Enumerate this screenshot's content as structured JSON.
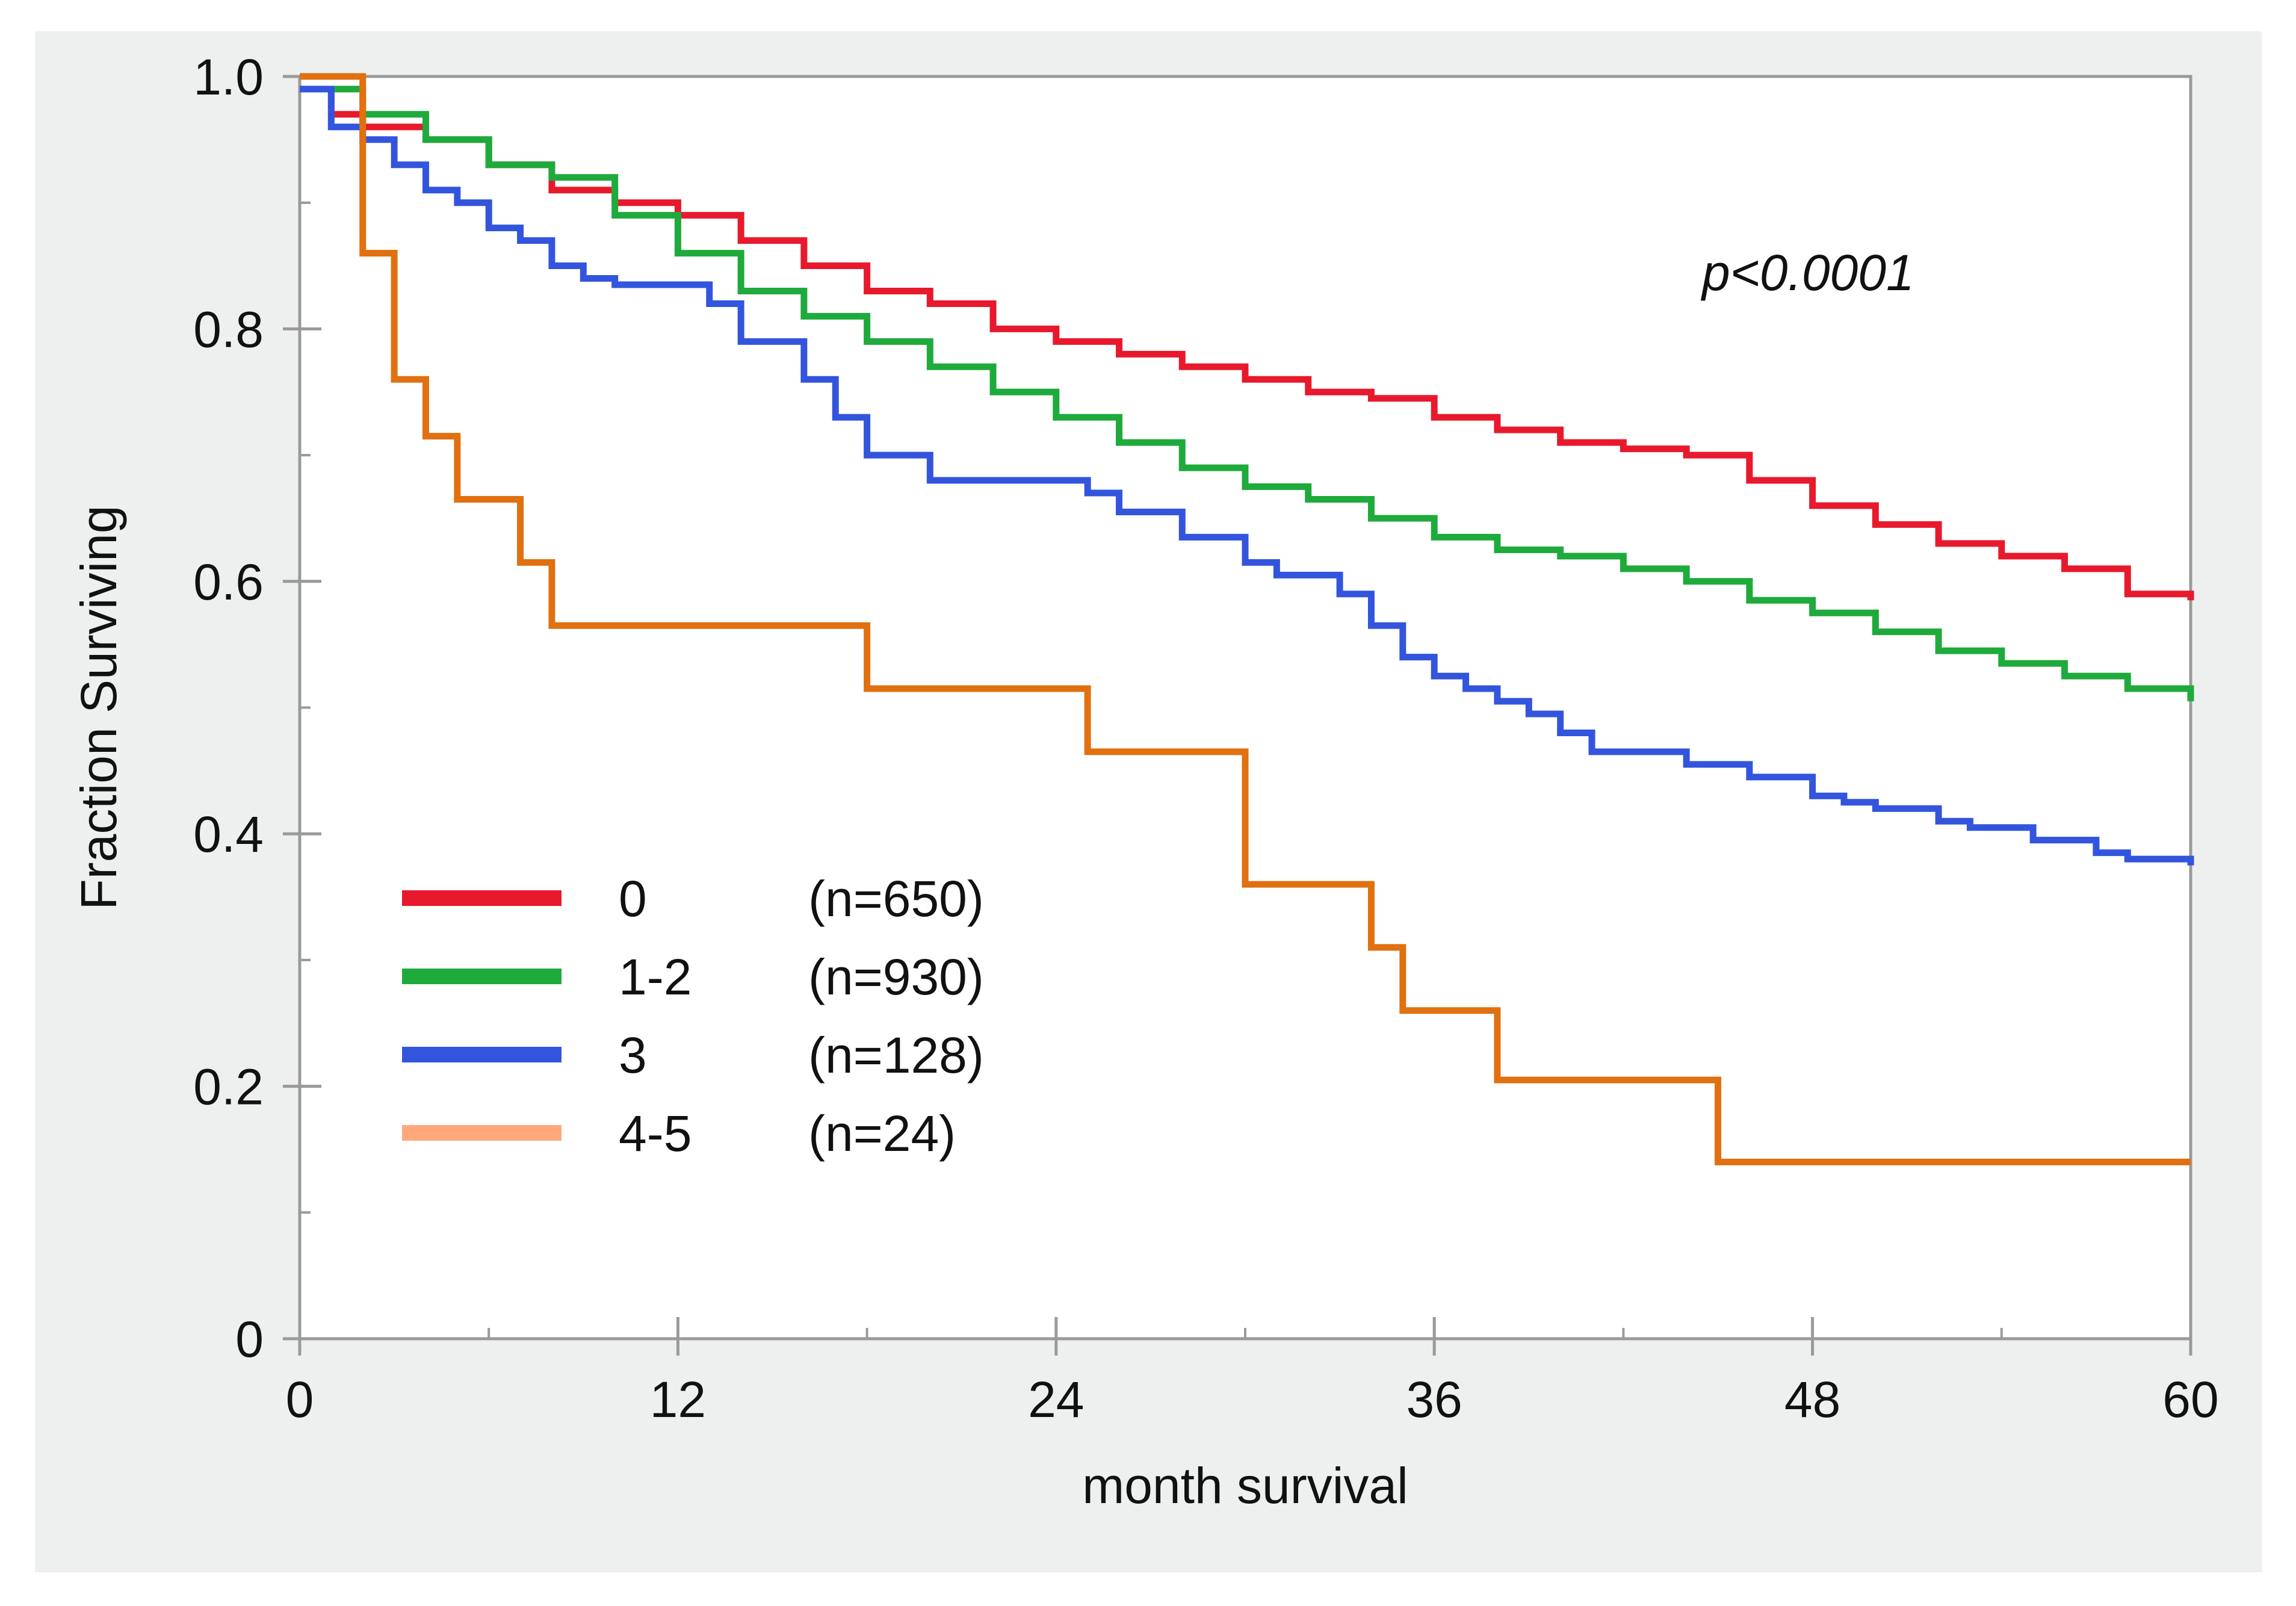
{
  "chart_data": {
    "type": "line",
    "title": "",
    "xlabel": "month survival",
    "ylabel": "Fraction Surviving",
    "xlim": [
      0,
      60
    ],
    "ylim": [
      0,
      1
    ],
    "xticks": [
      0,
      12,
      24,
      36,
      48,
      60
    ],
    "xtick_labels": [
      "0",
      "12",
      "24",
      "36",
      "48",
      "60"
    ],
    "yticks": [
      0,
      0.2,
      0.4,
      0.6,
      0.8,
      1.0
    ],
    "ytick_labels": [
      "0",
      "0.2",
      "0.4",
      "0.6",
      "0.8",
      "1.0"
    ],
    "annotation": "p<0.0001",
    "legend_position": "lower-left",
    "series": [
      {
        "name": "0",
        "n_label": "(n=650)",
        "color": "#e8192c",
        "legend_color": "#e8192c",
        "x": [
          0,
          1,
          2,
          4,
          6,
          8,
          10,
          12,
          14,
          16,
          18,
          20,
          22,
          24,
          26,
          28,
          30,
          32,
          34,
          36,
          38,
          40,
          42,
          44,
          46,
          48,
          50,
          52,
          54,
          56,
          58,
          60
        ],
        "y": [
          0.99,
          0.97,
          0.96,
          0.95,
          0.93,
          0.91,
          0.9,
          0.89,
          0.87,
          0.85,
          0.83,
          0.82,
          0.8,
          0.79,
          0.78,
          0.77,
          0.76,
          0.75,
          0.745,
          0.73,
          0.72,
          0.71,
          0.705,
          0.7,
          0.68,
          0.66,
          0.645,
          0.63,
          0.62,
          0.61,
          0.59,
          0.585
        ]
      },
      {
        "name": "1-2",
        "n_label": "(n=930)",
        "color": "#1faa3c",
        "legend_color": "#1faa3c",
        "x": [
          0,
          2,
          4,
          6,
          8,
          10,
          12,
          14,
          16,
          18,
          20,
          22,
          24,
          26,
          28,
          30,
          32,
          34,
          36,
          38,
          40,
          42,
          44,
          46,
          48,
          50,
          52,
          54,
          56,
          58,
          60
        ],
        "y": [
          0.99,
          0.97,
          0.95,
          0.93,
          0.92,
          0.89,
          0.86,
          0.83,
          0.81,
          0.79,
          0.77,
          0.75,
          0.73,
          0.71,
          0.69,
          0.675,
          0.665,
          0.65,
          0.635,
          0.625,
          0.62,
          0.61,
          0.6,
          0.585,
          0.575,
          0.56,
          0.545,
          0.535,
          0.525,
          0.515,
          0.505
        ]
      },
      {
        "name": "3",
        "n_label": "(n=128)",
        "color": "#3355dd",
        "legend_color": "#3355dd",
        "x": [
          0,
          1,
          2,
          3,
          4,
          5,
          6,
          7,
          8,
          9,
          10,
          12,
          13,
          14,
          16,
          17,
          18,
          20,
          22,
          24,
          25,
          26,
          28,
          30,
          31,
          33,
          34,
          35,
          36,
          37,
          38,
          39,
          40,
          41,
          42,
          44,
          46,
          47,
          48,
          49,
          50,
          52,
          53,
          55,
          57,
          58,
          60
        ],
        "y": [
          0.99,
          0.96,
          0.95,
          0.93,
          0.91,
          0.9,
          0.88,
          0.87,
          0.85,
          0.84,
          0.835,
          0.835,
          0.82,
          0.79,
          0.76,
          0.73,
          0.7,
          0.68,
          0.68,
          0.68,
          0.67,
          0.655,
          0.635,
          0.615,
          0.605,
          0.59,
          0.565,
          0.54,
          0.525,
          0.515,
          0.505,
          0.495,
          0.48,
          0.465,
          0.465,
          0.455,
          0.445,
          0.445,
          0.43,
          0.425,
          0.42,
          0.41,
          0.405,
          0.395,
          0.385,
          0.38,
          0.375
        ]
      },
      {
        "name": "4-5",
        "n_label": "(n=24)",
        "color": "#e07010",
        "legend_color": "#ffa97a",
        "x": [
          0,
          2,
          3,
          4,
          5,
          7,
          8,
          18,
          25,
          30,
          34,
          35,
          38,
          45,
          60
        ],
        "y": [
          1.0,
          0.86,
          0.76,
          0.715,
          0.665,
          0.615,
          0.565,
          0.515,
          0.465,
          0.36,
          0.31,
          0.26,
          0.205,
          0.14,
          0.14
        ]
      }
    ]
  }
}
